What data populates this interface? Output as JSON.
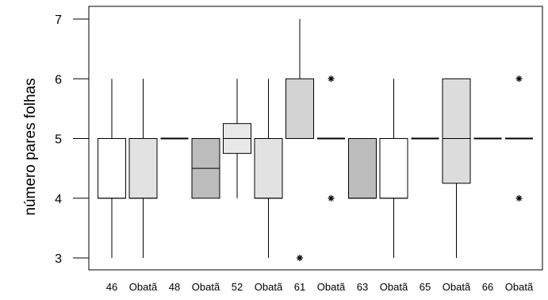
{
  "chart_data": {
    "type": "boxplot",
    "ylabel": "número pares folhas",
    "xlabel": "",
    "ylim": [
      3,
      7
    ],
    "yticks": [
      3,
      4,
      5,
      6,
      7
    ],
    "grid": false,
    "legend": "none",
    "categories": [
      "46",
      "Obatã",
      "48",
      "Obatã",
      "52",
      "Obatã",
      "61",
      "Obatã",
      "63",
      "Obatã",
      "65",
      "Obatã",
      "66",
      "Obatã"
    ],
    "boxes": [
      {
        "min": 3,
        "q1": 4,
        "median": 4,
        "q3": 5,
        "max": 6,
        "outliers": [],
        "fill": "#ffffff"
      },
      {
        "min": 3,
        "q1": 4,
        "median": 4,
        "q3": 5,
        "max": 6,
        "outliers": [],
        "fill": "#e2e2e2"
      },
      {
        "min": 5,
        "q1": 5,
        "median": 5,
        "q3": 5,
        "max": 5,
        "outliers": [],
        "fill": "#ffffff"
      },
      {
        "min": 4,
        "q1": 4,
        "median": 4.5,
        "q3": 5,
        "max": 5,
        "outliers": [],
        "fill": "#bcbcbc"
      },
      {
        "min": 4,
        "q1": 4.75,
        "median": 5,
        "q3": 5.25,
        "max": 6,
        "outliers": [],
        "fill": "#e8e8e8"
      },
      {
        "min": 3,
        "q1": 4,
        "median": 4,
        "q3": 5,
        "max": 6,
        "outliers": [],
        "fill": "#e2e2e2"
      },
      {
        "min": 5,
        "q1": 5,
        "median": 5,
        "q3": 6,
        "max": 7,
        "outliers": [
          3
        ],
        "fill": "#d2d2d2"
      },
      {
        "min": 5,
        "q1": 5,
        "median": 5,
        "q3": 5,
        "max": 5,
        "outliers": [
          4,
          6
        ],
        "fill": "#e2e2e2"
      },
      {
        "min": 4,
        "q1": 4,
        "median": 4,
        "q3": 5,
        "max": 5,
        "outliers": [],
        "fill": "#bcbcbc"
      },
      {
        "min": 3,
        "q1": 4,
        "median": 4,
        "q3": 5,
        "max": 6,
        "outliers": [],
        "fill": "#ffffff"
      },
      {
        "min": 5,
        "q1": 5,
        "median": 5,
        "q3": 5,
        "max": 5,
        "outliers": [],
        "fill": "#ffffff"
      },
      {
        "min": 3,
        "q1": 4.25,
        "median": 5,
        "q3": 6,
        "max": 6,
        "outliers": [],
        "fill": "#dcdcdc"
      },
      {
        "min": 5,
        "q1": 5,
        "median": 5,
        "q3": 5,
        "max": 5,
        "outliers": [],
        "fill": "#ffffff"
      },
      {
        "min": 5,
        "q1": 5,
        "median": 5,
        "q3": 5,
        "max": 5,
        "outliers": [
          4,
          6
        ],
        "fill": "#e2e2e2"
      }
    ]
  }
}
